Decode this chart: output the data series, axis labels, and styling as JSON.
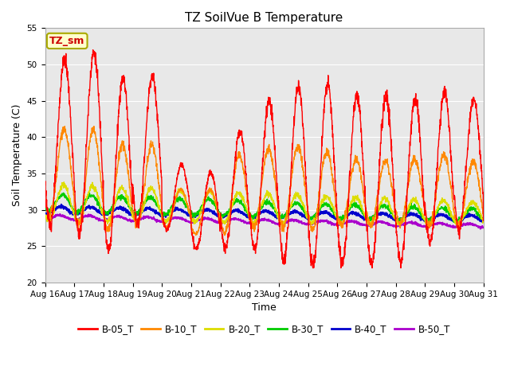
{
  "title": "TZ SoilVue B Temperature",
  "xlabel": "Time",
  "ylabel": "Soil Temperature (C)",
  "ylim": [
    20,
    55
  ],
  "yticks": [
    20,
    25,
    30,
    35,
    40,
    45,
    50,
    55
  ],
  "x_labels": [
    "Aug 16",
    "Aug 17",
    "Aug 18",
    "Aug 19",
    "Aug 20",
    "Aug 21",
    "Aug 22",
    "Aug 23",
    "Aug 24",
    "Aug 25",
    "Aug 26",
    "Aug 27",
    "Aug 28",
    "Aug 29",
    "Aug 30",
    "Aug 31"
  ],
  "annotation_text": "TZ_sm",
  "annotation_bg": "#ffffcc",
  "annotation_border": "#aaaa00",
  "annotation_text_color": "#cc0000",
  "fig_bg": "#ffffff",
  "plot_bg": "#e8e8e8",
  "grid_color": "#ffffff",
  "legend_entries": [
    "B-05_T",
    "B-10_T",
    "B-20_T",
    "B-30_T",
    "B-40_T",
    "B-50_T"
  ],
  "line_colors": [
    "#ff0000",
    "#ff8800",
    "#dddd00",
    "#00cc00",
    "#0000cc",
    "#aa00cc"
  ],
  "title_fontsize": 11,
  "axis_label_fontsize": 9,
  "tick_fontsize": 7.5,
  "legend_fontsize": 8.5,
  "b05_peaks": [
    51.5,
    52.0,
    48.5,
    48.8,
    36.5,
    35.5,
    41.0,
    45.5,
    47.8,
    48.5,
    46.3,
    46.5,
    46.0,
    47.0,
    45.5
  ],
  "b05_mins": [
    27.0,
    26.0,
    24.0,
    27.5,
    27.0,
    24.5,
    24.0,
    24.0,
    22.5,
    22.0,
    22.0,
    22.0,
    22.0,
    25.0,
    26.0
  ],
  "b10_peaks": [
    41.5,
    41.5,
    39.5,
    39.5,
    33.0,
    33.0,
    38.0,
    39.0,
    39.0,
    38.5,
    37.5,
    37.0,
    37.5,
    38.0,
    37.0
  ],
  "b10_mins": [
    28.5,
    27.5,
    27.0,
    27.5,
    27.5,
    26.5,
    26.5,
    27.0,
    27.0,
    27.0,
    27.5,
    27.5,
    27.5,
    27.5,
    27.5
  ]
}
